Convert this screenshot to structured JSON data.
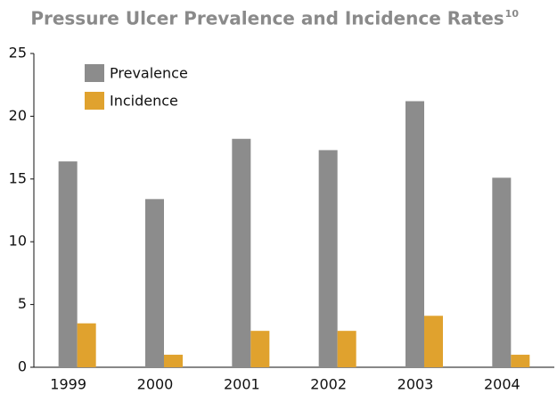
{
  "chart_data": {
    "type": "bar",
    "title": "Pressure Ulcer Prevalence and Incidence Rates",
    "title_superscript": "10",
    "categories": [
      "1999",
      "2000",
      "2001",
      "2002",
      "2003",
      "2004"
    ],
    "series": [
      {
        "name": "Prevalence",
        "color": "#8c8c8c",
        "values": [
          16.4,
          13.4,
          18.2,
          17.3,
          21.2,
          15.1
        ]
      },
      {
        "name": "Incidence",
        "color": "#e0a22e",
        "values": [
          3.5,
          1.0,
          2.9,
          2.9,
          4.1,
          1.0
        ]
      }
    ],
    "ylim": [
      0,
      25
    ],
    "yticks": [
      0,
      5,
      10,
      15,
      20,
      25
    ],
    "grid": false,
    "legend": "upper left"
  }
}
